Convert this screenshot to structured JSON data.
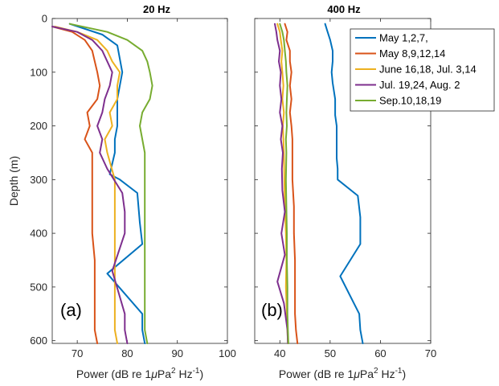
{
  "chart_data": [
    {
      "type": "line",
      "panel_label": "(a)",
      "title": "20 Hz",
      "xlabel": "Power (dB re 1",
      "xlabel_mu": "μ",
      "xlabel_pa": "Pa",
      "xlabel_sup1": "2",
      "xlabel_hz": " Hz",
      "xlabel_sup2": "-1",
      "xlabel_end": ")",
      "ylabel": "Depth (m)",
      "xlim": [
        65,
        100
      ],
      "ylim": [
        0,
        605
      ],
      "y_reversed": true,
      "xticks": [
        "70",
        "80",
        "90",
        "100"
      ],
      "yticks": [
        "0",
        "100",
        "200",
        "300",
        "400",
        "500",
        "600"
      ],
      "series": [
        {
          "name": "May 1,2,7,",
          "color": "#0072BD",
          "x": [
            68.5,
            75,
            78,
            78.5,
            79,
            78.5,
            78,
            78,
            78,
            77.5,
            77.5,
            76.5,
            78.5,
            82,
            82.5,
            83,
            76,
            83,
            83,
            83.5
          ],
          "y": [
            10,
            30,
            50,
            75,
            100,
            125,
            150,
            175,
            200,
            225,
            250,
            290,
            300,
            325,
            380,
            420,
            475,
            550,
            580,
            605
          ]
        },
        {
          "name": "May 8,9,12,14",
          "color": "#D95319",
          "x": [
            65,
            69,
            71.5,
            73,
            73.5,
            74,
            74.5,
            74,
            72,
            72.5,
            71.5,
            73,
            73,
            73,
            73,
            73.5,
            73.5,
            73.5,
            73.5,
            74
          ],
          "y": [
            15,
            25,
            40,
            60,
            80,
            100,
            125,
            150,
            175,
            200,
            225,
            250,
            300,
            350,
            400,
            450,
            500,
            550,
            580,
            605
          ]
        },
        {
          "name": "June 16,18, Jul. 3,14",
          "color": "#EDB120",
          "x": [
            65.5,
            70,
            74,
            76,
            77,
            78.5,
            78,
            78,
            76.5,
            77,
            75.5,
            76,
            77.5,
            77.5,
            77.5,
            77.5,
            77.5,
            77.5,
            77.5,
            78
          ],
          "y": [
            15,
            25,
            40,
            60,
            80,
            100,
            125,
            150,
            175,
            200,
            225,
            250,
            300,
            350,
            400,
            450,
            500,
            550,
            580,
            605
          ]
        },
        {
          "name": "Jul. 19,24, Aug. 2",
          "color": "#7E2F8E",
          "x": [
            65,
            70,
            73,
            75,
            76,
            77,
            76.5,
            75.5,
            75,
            74,
            75,
            74.5,
            76,
            79,
            79.5,
            79.5,
            77,
            79.5,
            79.5,
            80
          ],
          "y": [
            15,
            25,
            40,
            60,
            80,
            100,
            125,
            150,
            175,
            200,
            225,
            250,
            280,
            325,
            360,
            400,
            470,
            550,
            580,
            605
          ]
        },
        {
          "name": "Sep.10,18,19",
          "color": "#77AC30",
          "x": [
            68.5,
            76,
            80,
            83,
            84,
            84.5,
            85,
            84.5,
            83,
            82.5,
            83,
            83.5,
            83.5,
            83.5,
            83.5,
            83.5,
            83.5,
            83.5,
            83.5,
            84
          ],
          "y": [
            10,
            25,
            40,
            60,
            80,
            100,
            125,
            150,
            175,
            200,
            225,
            250,
            300,
            350,
            400,
            450,
            500,
            550,
            580,
            605
          ]
        }
      ]
    },
    {
      "type": "line",
      "panel_label": "(b)",
      "title": "400 Hz",
      "xlabel": "Power (dB re 1",
      "xlabel_mu": "μ",
      "xlabel_pa": "Pa",
      "xlabel_sup1": "2",
      "xlabel_hz": " Hz",
      "xlabel_sup2": "-1",
      "xlabel_end": ")",
      "xlim": [
        35,
        70
      ],
      "ylim": [
        0,
        605
      ],
      "y_reversed": true,
      "xticks": [
        "40",
        "50",
        "60",
        "70"
      ],
      "series": [
        {
          "name": "May 1,2,7,",
          "color": "#0072BD",
          "x": [
            49,
            49.5,
            50,
            50.5,
            50.5,
            50.3,
            50.5,
            51,
            51,
            51.3,
            51.3,
            51.3,
            51.5,
            51.5,
            55.5,
            56,
            56,
            52,
            55.8,
            56,
            56.5
          ],
          "y": [
            10,
            25,
            40,
            60,
            80,
            100,
            120,
            150,
            180,
            200,
            230,
            260,
            280,
            300,
            330,
            370,
            420,
            480,
            550,
            580,
            605
          ]
        },
        {
          "name": "May 8,9,12,14",
          "color": "#D95319",
          "x": [
            41,
            41.5,
            41.3,
            42,
            42,
            42.3,
            42,
            42.3,
            42,
            42.3,
            42.5,
            42.5,
            42.5,
            42.8,
            42.8,
            43,
            43,
            43,
            43.2,
            43.5
          ],
          "y": [
            10,
            25,
            40,
            60,
            80,
            100,
            125,
            150,
            175,
            200,
            225,
            250,
            300,
            350,
            400,
            450,
            500,
            550,
            580,
            605
          ]
        },
        {
          "name": "June 16,18, Jul. 3,14",
          "color": "#EDB120",
          "x": [
            39.5,
            40,
            40.2,
            40.5,
            40.3,
            40.5,
            40.7,
            40.5,
            40.8,
            40.6,
            40.7,
            40.8,
            40.9,
            41,
            41.2,
            41.3,
            41.2,
            41.4,
            41.5,
            41.6
          ],
          "y": [
            10,
            25,
            40,
            60,
            80,
            100,
            125,
            150,
            175,
            200,
            225,
            250,
            300,
            350,
            400,
            450,
            500,
            550,
            580,
            605
          ]
        },
        {
          "name": "Jul. 19,24, Aug. 2",
          "color": "#7E2F8E",
          "x": [
            39,
            39.3,
            39.5,
            40,
            39.8,
            40.2,
            40,
            40.3,
            40,
            40.5,
            40.2,
            40.6,
            40.4,
            40.5,
            41,
            40.3,
            41,
            39.5,
            40.8,
            41.5,
            41.6
          ],
          "y": [
            10,
            25,
            40,
            60,
            80,
            100,
            125,
            150,
            175,
            200,
            225,
            250,
            280,
            320,
            360,
            400,
            440,
            490,
            530,
            580,
            605
          ]
        },
        {
          "name": "Sep.10,18,19",
          "color": "#77AC30",
          "x": [
            40,
            40.5,
            40.8,
            41,
            41.2,
            41.3,
            41.5,
            41.4,
            41.3,
            41.4,
            41.2,
            41.3,
            41.2,
            41.3,
            41.4,
            41.4,
            41.5,
            41.5,
            41.6,
            41.7
          ],
          "y": [
            10,
            25,
            40,
            60,
            80,
            100,
            125,
            150,
            175,
            200,
            225,
            250,
            300,
            350,
            400,
            450,
            500,
            550,
            580,
            605
          ]
        }
      ]
    }
  ],
  "legend": {
    "placement": "top-right",
    "entries": [
      "May 1,2,7,",
      "May 8,9,12,14",
      "June 16,18, Jul. 3,14",
      "Jul. 19,24, Aug. 2",
      "Sep.10,18,19"
    ]
  }
}
